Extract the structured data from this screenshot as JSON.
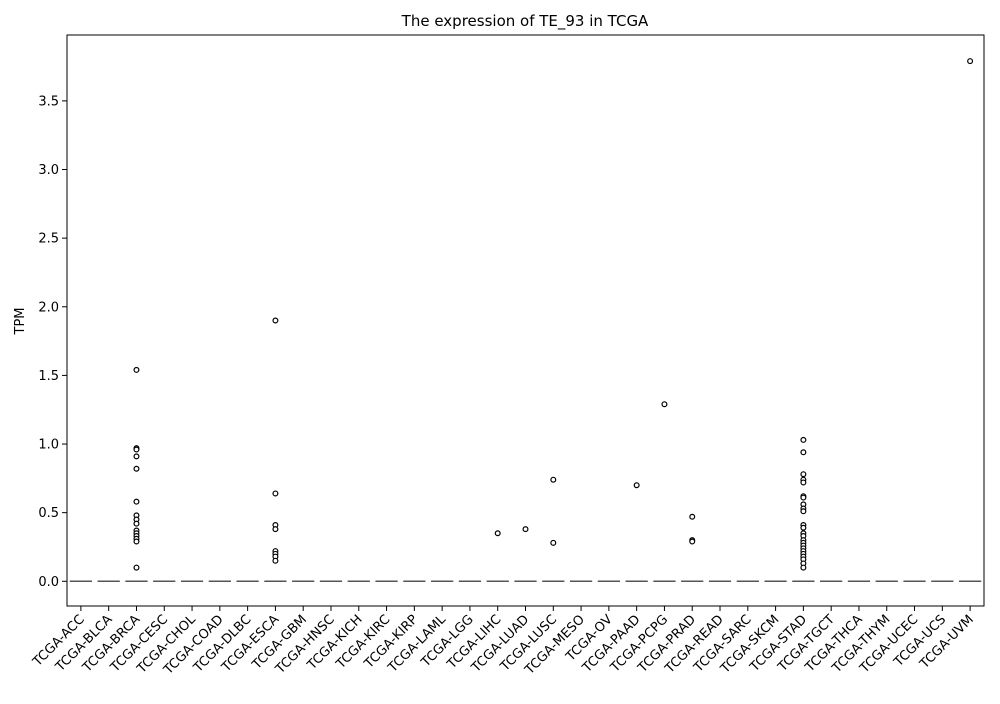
{
  "chart_data": {
    "type": "box",
    "title": "The expression of TE_93 in TCGA",
    "xlabel": "",
    "ylabel": "TPM",
    "ylim": [
      -0.18,
      3.98
    ],
    "yticks": [
      0.0,
      0.5,
      1.0,
      1.5,
      2.0,
      2.5,
      3.0,
      3.5
    ],
    "ytick_labels": [
      "0.0",
      "0.5",
      "1.0",
      "1.5",
      "2.0",
      "2.5",
      "3.0",
      "3.5"
    ],
    "grid": false,
    "categories": [
      "TCGA-ACC",
      "TCGA-BLCA",
      "TCGA-BRCA",
      "TCGA-CESC",
      "TCGA-CHOL",
      "TCGA-COAD",
      "TCGA-DLBC",
      "TCGA-ESCA",
      "TCGA-GBM",
      "TCGA-HNSC",
      "TCGA-KICH",
      "TCGA-KIRC",
      "TCGA-KIRP",
      "TCGA-LAML",
      "TCGA-LGG",
      "TCGA-LIHC",
      "TCGA-LUAD",
      "TCGA-LUSC",
      "TCGA-MESO",
      "TCGA-OV",
      "TCGA-PAAD",
      "TCGA-PCPG",
      "TCGA-PRAD",
      "TCGA-READ",
      "TCGA-SARC",
      "TCGA-SKCM",
      "TCGA-STAD",
      "TCGA-TGCT",
      "TCGA-THCA",
      "TCGA-THYM",
      "TCGA-UCEC",
      "TCGA-UCS",
      "TCGA-UVM"
    ],
    "medians": [
      0,
      0,
      0,
      0,
      0,
      0,
      0,
      0,
      0,
      0,
      0,
      0,
      0,
      0,
      0,
      0,
      0,
      0,
      0,
      0,
      0,
      0,
      0,
      0,
      0,
      0,
      0,
      0,
      0,
      0,
      0,
      0,
      0
    ],
    "outliers": {
      "TCGA-BRCA": [
        1.54,
        0.97,
        0.96,
        0.91,
        0.82,
        0.58,
        0.48,
        0.45,
        0.42,
        0.37,
        0.35,
        0.33,
        0.31,
        0.29,
        0.1
      ],
      "TCGA-ESCA": [
        1.9,
        0.64,
        0.41,
        0.38,
        0.22,
        0.2,
        0.18,
        0.15
      ],
      "TCGA-LIHC": [
        0.35
      ],
      "TCGA-LUAD": [
        0.38
      ],
      "TCGA-LUSC": [
        0.74,
        0.28
      ],
      "TCGA-PAAD": [
        0.7
      ],
      "TCGA-PCPG": [
        1.29
      ],
      "TCGA-PRAD": [
        0.47,
        0.3,
        0.29
      ],
      "TCGA-STAD": [
        1.03,
        0.94,
        0.78,
        0.74,
        0.72,
        0.62,
        0.61,
        0.56,
        0.53,
        0.51,
        0.41,
        0.39,
        0.35,
        0.33,
        0.3,
        0.28,
        0.26,
        0.24,
        0.22,
        0.2,
        0.18,
        0.16,
        0.13,
        0.1
      ],
      "TCGA-UVM": [
        3.79
      ]
    },
    "colors": {
      "axis": "#000000",
      "median": "#555555",
      "marker_edge": "#000000",
      "marker_fill": "#ffffff"
    }
  }
}
